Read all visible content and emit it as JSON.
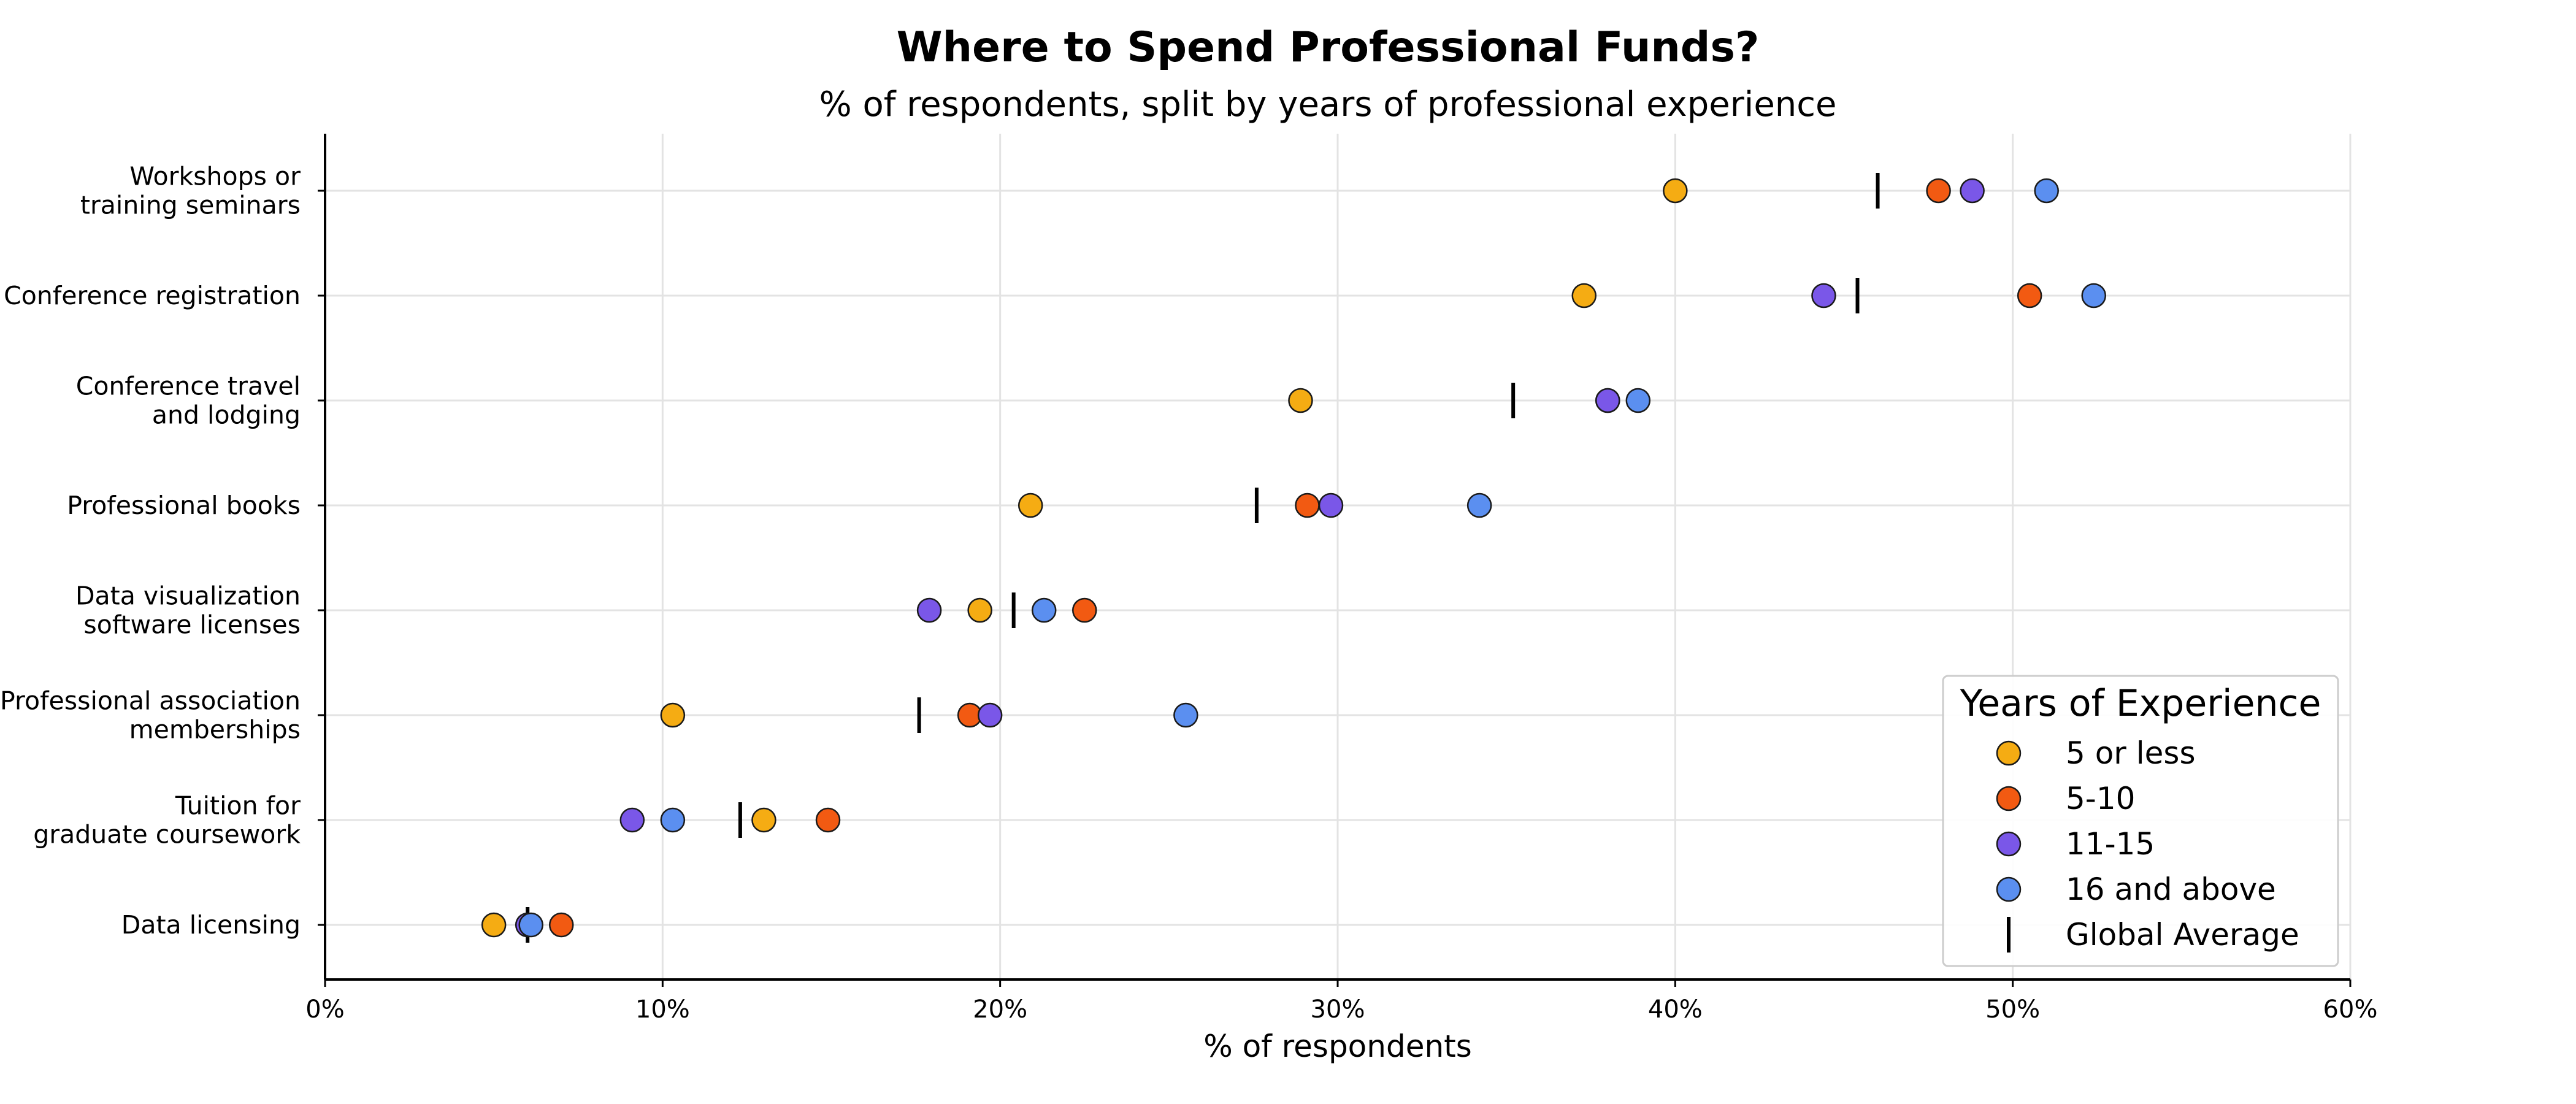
{
  "chart_data": {
    "type": "scatter",
    "title": "Where to Spend Professional Funds?",
    "subtitle": "% of respondents, split by years of professional experience",
    "xlabel": "% of respondents",
    "ylabel": "",
    "xlim": [
      0,
      60
    ],
    "xticks": [
      "0%",
      "10%",
      "20%",
      "30%",
      "40%",
      "50%",
      "60%"
    ],
    "grid": true,
    "legend_title": "Years of Experience",
    "legend_position": "bottom-right",
    "average_label": "Global Average",
    "categories": [
      [
        "Workshops or",
        "training seminars"
      ],
      [
        "Conference registration"
      ],
      [
        "Conference travel",
        "and lodging"
      ],
      [
        "Professional books"
      ],
      [
        "Data visualization",
        "software licenses"
      ],
      [
        "Professional association",
        "memberships"
      ],
      [
        "Tuition for",
        "graduate coursework"
      ],
      [
        "Data licensing"
      ]
    ],
    "series": [
      {
        "name": "5 or less",
        "color": "#f5ac13",
        "values": [
          40.0,
          37.3,
          28.9,
          20.9,
          19.4,
          10.3,
          13.0,
          5.0
        ]
      },
      {
        "name": "5-10",
        "color": "#f25a12",
        "values": [
          47.8,
          50.5,
          38.0,
          29.1,
          22.5,
          19.1,
          14.9,
          7.0
        ]
      },
      {
        "name": "11-15",
        "color": "#7a57e8",
        "values": [
          48.8,
          44.4,
          38.0,
          29.8,
          17.9,
          19.7,
          9.1,
          6.0
        ]
      },
      {
        "name": "16 and above",
        "color": "#5b8ff0",
        "values": [
          51.0,
          52.4,
          38.9,
          34.2,
          21.3,
          25.5,
          10.3,
          6.1
        ]
      }
    ],
    "global_average": [
      46.0,
      45.4,
      35.2,
      27.6,
      20.4,
      17.6,
      12.3,
      6.0
    ]
  }
}
